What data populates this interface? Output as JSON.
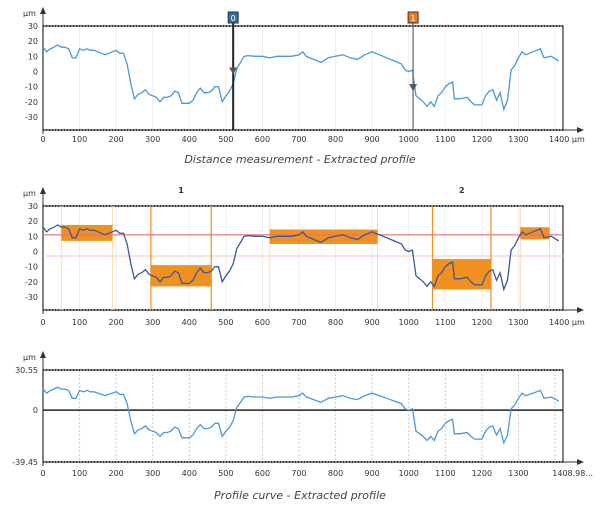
{
  "chart_data": [
    {
      "type": "line",
      "title": "Distance measurement - Extracted profile",
      "ylabel": "µm",
      "xlabel": "µm",
      "xlim": [
        0,
        1410
      ],
      "ylim": [
        -38,
        30
      ],
      "yticks": [
        "30",
        "20",
        "10",
        "0",
        "-10",
        "-20",
        "-30"
      ],
      "xticks": [
        "0",
        "100",
        "200",
        "300",
        "400",
        "500",
        "600",
        "700",
        "800",
        "900",
        "1000",
        "1100",
        "1200",
        "1300",
        "1400 µm"
      ],
      "cursors": [
        {
          "label": "0",
          "x": 520,
          "y": 0,
          "color": "#2a6ea6"
        },
        {
          "label": "1",
          "x": 1012,
          "y": -11,
          "color": "#e87a1e"
        }
      ]
    },
    {
      "type": "line",
      "title": "",
      "ylabel": "µm",
      "xlim": [
        0,
        1410
      ],
      "ylim": [
        -38,
        30
      ],
      "yticks": [
        "30",
        "20",
        "10",
        "0",
        "-10",
        "-20",
        "-30"
      ],
      "xticks": [
        "0",
        "100",
        "200",
        "300",
        "400",
        "500",
        "600",
        "700",
        "800",
        "900",
        "1000",
        "1100",
        "1200",
        "1300",
        "1400 µm"
      ],
      "reference_line": 11,
      "secondary_line": -3,
      "regions": [
        {
          "x": [
            50,
            190
          ],
          "y": [
            7,
            17.5
          ]
        },
        {
          "x": [
            295,
            460
          ],
          "y": [
            -23,
            -9
          ]
        },
        {
          "x": [
            620,
            915
          ],
          "y": [
            5,
            14.5
          ]
        },
        {
          "x": [
            1065,
            1225
          ],
          "y": [
            -25,
            -5
          ]
        },
        {
          "x": [
            1305,
            1385
          ],
          "y": [
            8,
            16
          ]
        }
      ],
      "region_pairs": [
        {
          "label": "1",
          "x": [
            295,
            460
          ]
        },
        {
          "label": "2",
          "x": [
            1065,
            1225
          ]
        }
      ]
    },
    {
      "type": "line",
      "title": "Profile curve - Extracted profile",
      "ylabel": "µm",
      "xlim": [
        0,
        1408.98
      ],
      "ylim": [
        -39.45,
        30.55
      ],
      "yticks": [
        "30.55",
        "0",
        "-39.45"
      ],
      "xticks": [
        "0",
        "100",
        "200",
        "300",
        "400",
        "500",
        "600",
        "700",
        "800",
        "900",
        "1000",
        "1100",
        "1200",
        "1300",
        "1408.98..."
      ]
    }
  ],
  "profile": {
    "x": [
      0,
      10,
      20,
      30,
      40,
      50,
      60,
      70,
      80,
      90,
      100,
      110,
      120,
      130,
      140,
      150,
      160,
      170,
      180,
      190,
      200,
      210,
      220,
      230,
      240,
      250,
      260,
      270,
      280,
      290,
      300,
      310,
      320,
      330,
      340,
      350,
      360,
      370,
      380,
      390,
      400,
      410,
      420,
      430,
      440,
      450,
      460,
      470,
      480,
      490,
      500,
      510,
      520,
      530,
      540,
      550,
      560,
      580,
      600,
      620,
      640,
      660,
      680,
      700,
      710,
      720,
      740,
      760,
      780,
      800,
      820,
      840,
      860,
      880,
      900,
      920,
      940,
      960,
      980,
      990,
      1000,
      1010,
      1020,
      1040,
      1050,
      1060,
      1070,
      1080,
      1090,
      1100,
      1110,
      1120,
      1125,
      1140,
      1160,
      1170,
      1180,
      1200,
      1210,
      1220,
      1230,
      1240,
      1250,
      1260,
      1270,
      1280,
      1290,
      1300,
      1310,
      1320,
      1340,
      1360,
      1370,
      1390,
      1410
    ],
    "y": [
      16,
      13,
      15,
      16,
      17.5,
      16,
      16,
      15,
      9,
      9,
      15,
      14,
      15,
      14,
      14,
      13,
      12,
      11,
      12,
      13,
      14,
      12,
      12,
      5,
      -8,
      -18,
      -15,
      -14,
      -12,
      -15,
      -16,
      -17,
      -20,
      -17,
      -17,
      -16,
      -13,
      -14,
      -21,
      -21,
      -21,
      -19,
      -14,
      -11,
      -14,
      -14,
      -13,
      -10,
      -10,
      -20,
      -16,
      -13,
      -8,
      2,
      6,
      10,
      10.5,
      10,
      10,
      9,
      10,
      10,
      10,
      11,
      13,
      10,
      8,
      6,
      9,
      10,
      11,
      9,
      8,
      11,
      13,
      11,
      9,
      7,
      5,
      1,
      0,
      1,
      -16,
      -20,
      -23,
      -20,
      -23,
      -16,
      -14,
      -10,
      -8,
      -7,
      -18,
      -18,
      -17,
      -20,
      -22,
      -22,
      -16,
      -13,
      -12,
      -19,
      -14,
      -25,
      -19,
      1,
      4,
      9,
      13,
      11,
      13,
      15,
      9,
      10,
      7
    ]
  },
  "colors": {
    "profile": "#4a9ad8",
    "profile_dark": "#3a5a9a",
    "region": "#f0901e",
    "reference": "#e87070"
  },
  "axis_unit": "µm"
}
